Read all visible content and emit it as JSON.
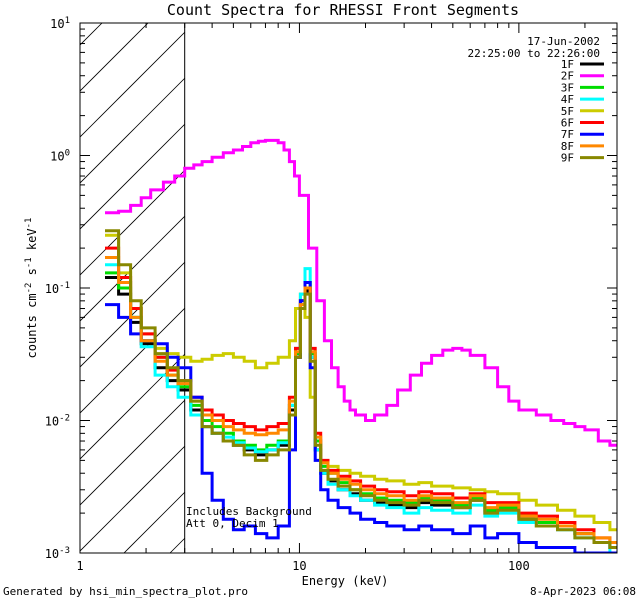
{
  "chart_data": {
    "type": "line",
    "title": "Count Spectra for RHESSI Front Segments",
    "xlabel": "Energy (keV)",
    "ylabel": "counts cm",
    "ylabel_sup1": "-2",
    "ylabel_mid": " s",
    "ylabel_sup2": "-1",
    "ylabel_end": " keV",
    "ylabel_sup3": "-1",
    "x_scale": "log",
    "y_scale": "log",
    "xlim": [
      1,
      280
    ],
    "ylim": [
      0.001,
      10
    ],
    "x_tick_labels": [
      "1",
      "10",
      "100"
    ],
    "y_tick_base": "10",
    "y_tick_exponents": [
      "-3",
      "-2",
      "-1",
      "0",
      "1"
    ],
    "date": "17-Jun-2002",
    "time_range": "22:25:00 to 22:26:00",
    "hatched_region_max_kev": 3,
    "annotation_line1": "Includes Background",
    "annotation_line2": "Att 0, Decim 1",
    "footer_left": "Generated by hsi_min_spectra_plot.pro",
    "footer_right": "8-Apr-2023 06:08",
    "series": [
      {
        "name": "1F",
        "color": "#000000",
        "x": [
          1.3,
          1.5,
          1.7,
          1.9,
          2.2,
          2.5,
          2.8,
          3.2,
          3.6,
          4.0,
          4.5,
          5.0,
          5.6,
          6.3,
          7.1,
          8.0,
          9.0,
          9.6,
          10.1,
          10.6,
          11.2,
          11.8,
          12.5,
          13.5,
          15,
          17,
          19,
          22,
          25,
          30,
          35,
          40,
          50,
          60,
          70,
          80,
          100,
          120,
          150,
          180,
          220,
          260
        ],
        "y": [
          0.12,
          0.09,
          0.055,
          0.038,
          0.025,
          0.02,
          0.017,
          0.012,
          0.009,
          0.008,
          0.007,
          0.0065,
          0.006,
          0.0055,
          0.006,
          0.0065,
          0.012,
          0.03,
          0.07,
          0.095,
          0.03,
          0.006,
          0.004,
          0.0035,
          0.003,
          0.0028,
          0.0025,
          0.0024,
          0.0023,
          0.0022,
          0.0024,
          0.0023,
          0.0022,
          0.0025,
          0.002,
          0.0022,
          0.0018,
          0.0017,
          0.0016,
          0.0014,
          0.0012,
          0.0011
        ]
      },
      {
        "name": "2F",
        "color": "#ff00ff",
        "x": [
          1.3,
          1.5,
          1.7,
          1.9,
          2.1,
          2.4,
          2.7,
          3.0,
          3.3,
          3.6,
          4.0,
          4.5,
          5.0,
          5.5,
          6.0,
          6.5,
          7.0,
          7.5,
          8.0,
          8.5,
          9.0,
          9.5,
          10,
          11,
          12,
          13,
          14,
          15,
          16,
          17,
          18,
          20,
          22,
          25,
          28,
          32,
          36,
          40,
          45,
          50,
          55,
          60,
          70,
          80,
          90,
          100,
          120,
          140,
          160,
          180,
          200,
          230,
          260
        ],
        "y": [
          0.37,
          0.38,
          0.42,
          0.48,
          0.55,
          0.63,
          0.7,
          0.8,
          0.85,
          0.9,
          0.97,
          1.05,
          1.1,
          1.17,
          1.25,
          1.28,
          1.3,
          1.3,
          1.25,
          1.1,
          0.9,
          0.7,
          0.5,
          0.2,
          0.08,
          0.04,
          0.025,
          0.018,
          0.014,
          0.012,
          0.011,
          0.01,
          0.011,
          0.013,
          0.017,
          0.022,
          0.027,
          0.031,
          0.034,
          0.035,
          0.034,
          0.031,
          0.025,
          0.018,
          0.014,
          0.012,
          0.011,
          0.01,
          0.0095,
          0.009,
          0.0085,
          0.007,
          0.0065
        ]
      },
      {
        "name": "3F",
        "color": "#00dd00",
        "x": [
          1.3,
          1.5,
          1.7,
          1.9,
          2.2,
          2.5,
          2.8,
          3.2,
          3.6,
          4.0,
          4.5,
          5.0,
          5.6,
          6.3,
          7.1,
          8.0,
          9.0,
          9.6,
          10.1,
          10.6,
          11.2,
          11.8,
          12.5,
          13.5,
          15,
          17,
          19,
          22,
          25,
          30,
          35,
          40,
          50,
          60,
          70,
          80,
          100,
          120,
          150,
          180,
          220,
          260
        ],
        "y": [
          0.13,
          0.1,
          0.06,
          0.04,
          0.03,
          0.022,
          0.018,
          0.013,
          0.01,
          0.009,
          0.008,
          0.007,
          0.0065,
          0.006,
          0.0065,
          0.007,
          0.013,
          0.032,
          0.075,
          0.11,
          0.032,
          0.007,
          0.0045,
          0.004,
          0.0034,
          0.003,
          0.0028,
          0.0026,
          0.0025,
          0.0024,
          0.0026,
          0.0025,
          0.0023,
          0.0026,
          0.0021,
          0.0022,
          0.0019,
          0.0017,
          0.0016,
          0.0014,
          0.0012,
          0.0011
        ]
      },
      {
        "name": "4F",
        "color": "#00ffff",
        "x": [
          1.3,
          1.5,
          1.7,
          1.9,
          2.2,
          2.5,
          2.8,
          3.2,
          3.6,
          4.0,
          4.5,
          5.0,
          5.6,
          6.3,
          7.1,
          8.0,
          9.0,
          9.6,
          10.1,
          10.6,
          11.2,
          11.8,
          12.5,
          13.5,
          15,
          17,
          19,
          22,
          25,
          30,
          35,
          40,
          50,
          60,
          70,
          80,
          100,
          120,
          150,
          180,
          220,
          260
        ],
        "y": [
          0.15,
          0.11,
          0.06,
          0.036,
          0.022,
          0.018,
          0.015,
          0.011,
          0.009,
          0.008,
          0.0075,
          0.0068,
          0.0062,
          0.0058,
          0.006,
          0.0068,
          0.013,
          0.035,
          0.09,
          0.14,
          0.03,
          0.006,
          0.004,
          0.0033,
          0.003,
          0.0027,
          0.0025,
          0.0023,
          0.0022,
          0.002,
          0.0022,
          0.0021,
          0.002,
          0.0023,
          0.0019,
          0.002,
          0.0017,
          0.0016,
          0.0015,
          0.0013,
          0.0012,
          0.001
        ]
      },
      {
        "name": "5F",
        "color": "#cccc00",
        "x": [
          1.3,
          1.5,
          1.7,
          1.9,
          2.2,
          2.5,
          2.8,
          3.2,
          3.6,
          4.0,
          4.5,
          5.0,
          5.6,
          6.3,
          7.1,
          8.0,
          9.0,
          9.6,
          10.1,
          10.6,
          11.2,
          11.8,
          12.5,
          13.5,
          15,
          17,
          19,
          22,
          25,
          30,
          35,
          40,
          50,
          60,
          70,
          80,
          100,
          120,
          150,
          180,
          220,
          260
        ],
        "y": [
          0.25,
          0.13,
          0.07,
          0.045,
          0.035,
          0.032,
          0.03,
          0.028,
          0.029,
          0.031,
          0.032,
          0.03,
          0.028,
          0.025,
          0.027,
          0.03,
          0.04,
          0.07,
          0.09,
          0.06,
          0.015,
          0.006,
          0.0048,
          0.0045,
          0.0042,
          0.004,
          0.0038,
          0.0036,
          0.0035,
          0.0033,
          0.0034,
          0.0032,
          0.0031,
          0.003,
          0.0029,
          0.0028,
          0.0025,
          0.0023,
          0.0021,
          0.0019,
          0.0017,
          0.0015
        ]
      },
      {
        "name": "6F",
        "color": "#ff0000",
        "x": [
          1.3,
          1.5,
          1.7,
          1.9,
          2.2,
          2.5,
          2.8,
          3.2,
          3.6,
          4.0,
          4.5,
          5.0,
          5.6,
          6.3,
          7.1,
          8.0,
          9.0,
          9.6,
          10.1,
          10.6,
          11.2,
          11.8,
          12.5,
          13.5,
          15,
          17,
          19,
          22,
          25,
          30,
          35,
          40,
          50,
          60,
          70,
          80,
          100,
          120,
          150,
          180,
          220,
          260
        ],
        "y": [
          0.2,
          0.12,
          0.07,
          0.045,
          0.03,
          0.024,
          0.02,
          0.015,
          0.012,
          0.011,
          0.01,
          0.0095,
          0.009,
          0.0085,
          0.009,
          0.0095,
          0.015,
          0.035,
          0.08,
          0.1,
          0.035,
          0.008,
          0.005,
          0.0042,
          0.0038,
          0.0035,
          0.0032,
          0.003,
          0.0029,
          0.0027,
          0.0029,
          0.0028,
          0.0026,
          0.0028,
          0.0024,
          0.0024,
          0.002,
          0.0019,
          0.0017,
          0.0015,
          0.0013,
          0.0012
        ]
      },
      {
        "name": "7F",
        "color": "#0000ff",
        "x": [
          1.3,
          1.5,
          1.7,
          1.9,
          2.2,
          2.5,
          2.8,
          3.2,
          3.6,
          4.0,
          4.5,
          5.0,
          5.6,
          6.3,
          7.1,
          8.0,
          9.0,
          9.6,
          10.1,
          10.6,
          11.2,
          11.8,
          12.5,
          13.5,
          15,
          17,
          19,
          22,
          25,
          30,
          35,
          40,
          50,
          60,
          70,
          80,
          100,
          120,
          150,
          180,
          220,
          260
        ],
        "y": [
          0.075,
          0.06,
          0.045,
          0.04,
          0.038,
          0.03,
          0.025,
          0.015,
          0.004,
          0.0025,
          0.0018,
          0.0015,
          0.0016,
          0.0014,
          0.0013,
          0.0016,
          0.006,
          0.03,
          0.08,
          0.11,
          0.025,
          0.005,
          0.003,
          0.0025,
          0.0022,
          0.002,
          0.0018,
          0.0017,
          0.0016,
          0.0015,
          0.0016,
          0.0015,
          0.0014,
          0.0016,
          0.0013,
          0.0014,
          0.0012,
          0.0011,
          0.0011,
          0.001,
          0.001,
          0.001
        ]
      },
      {
        "name": "8F",
        "color": "#ff8800",
        "x": [
          1.3,
          1.5,
          1.7,
          1.9,
          2.2,
          2.5,
          2.8,
          3.2,
          3.6,
          4.0,
          4.5,
          5.0,
          5.6,
          6.3,
          7.1,
          8.0,
          9.0,
          9.6,
          10.1,
          10.6,
          11.2,
          11.8,
          12.5,
          13.5,
          15,
          17,
          19,
          22,
          25,
          30,
          35,
          40,
          50,
          60,
          70,
          80,
          100,
          120,
          150,
          180,
          220,
          260
        ],
        "y": [
          0.17,
          0.11,
          0.06,
          0.04,
          0.028,
          0.022,
          0.019,
          0.014,
          0.011,
          0.01,
          0.009,
          0.0085,
          0.008,
          0.0078,
          0.008,
          0.0085,
          0.014,
          0.033,
          0.075,
          0.1,
          0.033,
          0.0075,
          0.0048,
          0.004,
          0.0036,
          0.0033,
          0.003,
          0.0028,
          0.0027,
          0.0025,
          0.0027,
          0.0026,
          0.0024,
          0.0027,
          0.0022,
          0.0023,
          0.0019,
          0.0018,
          0.0016,
          0.0014,
          0.0013,
          0.0012
        ]
      },
      {
        "name": "9F",
        "color": "#888800",
        "x": [
          1.3,
          1.5,
          1.7,
          1.9,
          2.2,
          2.5,
          2.8,
          3.2,
          3.6,
          4.0,
          4.5,
          5.0,
          5.6,
          6.3,
          7.1,
          8.0,
          9.0,
          9.6,
          10.1,
          10.6,
          11.2,
          11.8,
          12.5,
          13.5,
          15,
          17,
          19,
          22,
          25,
          30,
          35,
          40,
          50,
          60,
          70,
          80,
          100,
          120,
          150,
          180,
          220,
          260
        ],
        "y": [
          0.27,
          0.15,
          0.08,
          0.05,
          0.032,
          0.025,
          0.02,
          0.014,
          0.009,
          0.008,
          0.007,
          0.0065,
          0.0055,
          0.005,
          0.0055,
          0.006,
          0.011,
          0.03,
          0.07,
          0.09,
          0.028,
          0.0065,
          0.0042,
          0.0036,
          0.0032,
          0.003,
          0.0027,
          0.0025,
          0.0024,
          0.0023,
          0.0025,
          0.0024,
          0.0022,
          0.0025,
          0.002,
          0.0021,
          0.0018,
          0.0016,
          0.0015,
          0.0013,
          0.0012,
          0.0011
        ]
      }
    ]
  }
}
